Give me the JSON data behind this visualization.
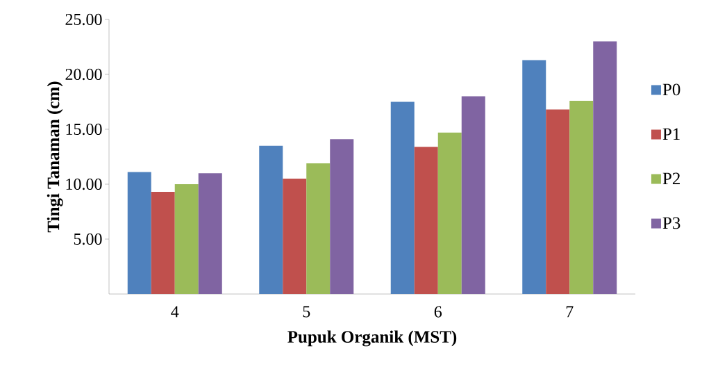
{
  "chart_data": {
    "type": "bar",
    "xlabel": "Pupuk Organik (MST)",
    "ylabel": "Tingi Tanaman (cm)",
    "categories": [
      "4",
      "5",
      "6",
      "7"
    ],
    "series": [
      {
        "name": "P0",
        "color": "#4f81bd",
        "values": [
          11.1,
          13.5,
          17.5,
          21.3
        ]
      },
      {
        "name": "P1",
        "color": "#c0504d",
        "values": [
          9.3,
          10.5,
          13.4,
          16.8
        ]
      },
      {
        "name": "P2",
        "color": "#9bbb59",
        "values": [
          10.0,
          11.9,
          14.7,
          17.6
        ]
      },
      {
        "name": "P3",
        "color": "#8064a2",
        "values": [
          11.0,
          14.1,
          18.0,
          23.0
        ]
      }
    ],
    "ylim": [
      0,
      25
    ],
    "yticks": [
      {
        "value": 5,
        "label": "5.00"
      },
      {
        "value": 10,
        "label": "10.00"
      },
      {
        "value": 15,
        "label": "15.00"
      },
      {
        "value": 20,
        "label": "20.00"
      },
      {
        "value": 25,
        "label": "25.00"
      }
    ],
    "grid": false,
    "legend": "right"
  }
}
